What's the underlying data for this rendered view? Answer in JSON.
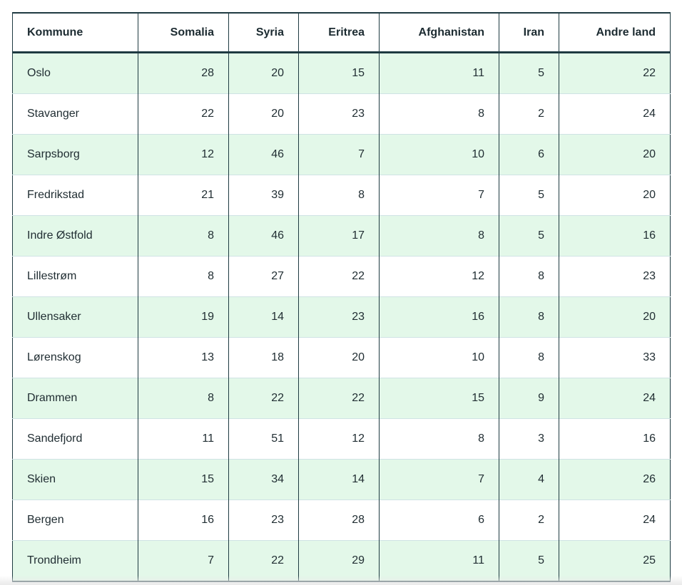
{
  "chart_data": {
    "type": "table",
    "columns": [
      "Kommune",
      "Somalia",
      "Syria",
      "Eritrea",
      "Afghanistan",
      "Iran",
      "Andre land"
    ],
    "rows": [
      [
        "Oslo",
        28,
        20,
        15,
        11,
        5,
        22
      ],
      [
        "Stavanger",
        22,
        20,
        23,
        8,
        2,
        24
      ],
      [
        "Sarpsborg",
        12,
        46,
        7,
        10,
        6,
        20
      ],
      [
        "Fredrikstad",
        21,
        39,
        8,
        7,
        5,
        20
      ],
      [
        "Indre Østfold",
        8,
        46,
        17,
        8,
        5,
        16
      ],
      [
        "Lillestrøm",
        8,
        27,
        22,
        12,
        8,
        23
      ],
      [
        "Ullensaker",
        19,
        14,
        23,
        16,
        8,
        20
      ],
      [
        "Lørenskog",
        13,
        18,
        20,
        10,
        8,
        33
      ],
      [
        "Drammen",
        8,
        22,
        22,
        15,
        9,
        24
      ],
      [
        "Sandefjord",
        11,
        51,
        12,
        8,
        3,
        16
      ],
      [
        "Skien",
        15,
        34,
        14,
        7,
        4,
        26
      ],
      [
        "Bergen",
        16,
        23,
        28,
        6,
        2,
        24
      ],
      [
        "Trondheim",
        7,
        22,
        29,
        11,
        5,
        25
      ]
    ]
  },
  "colors": {
    "border_dark": "#1e3a41",
    "text": "#212e33",
    "row_alt_green": "#e3f8e9",
    "row_separator": "#cfe3e4",
    "page_bottom_fade": "#e9e9e9",
    "row_white": "#ffffff"
  }
}
